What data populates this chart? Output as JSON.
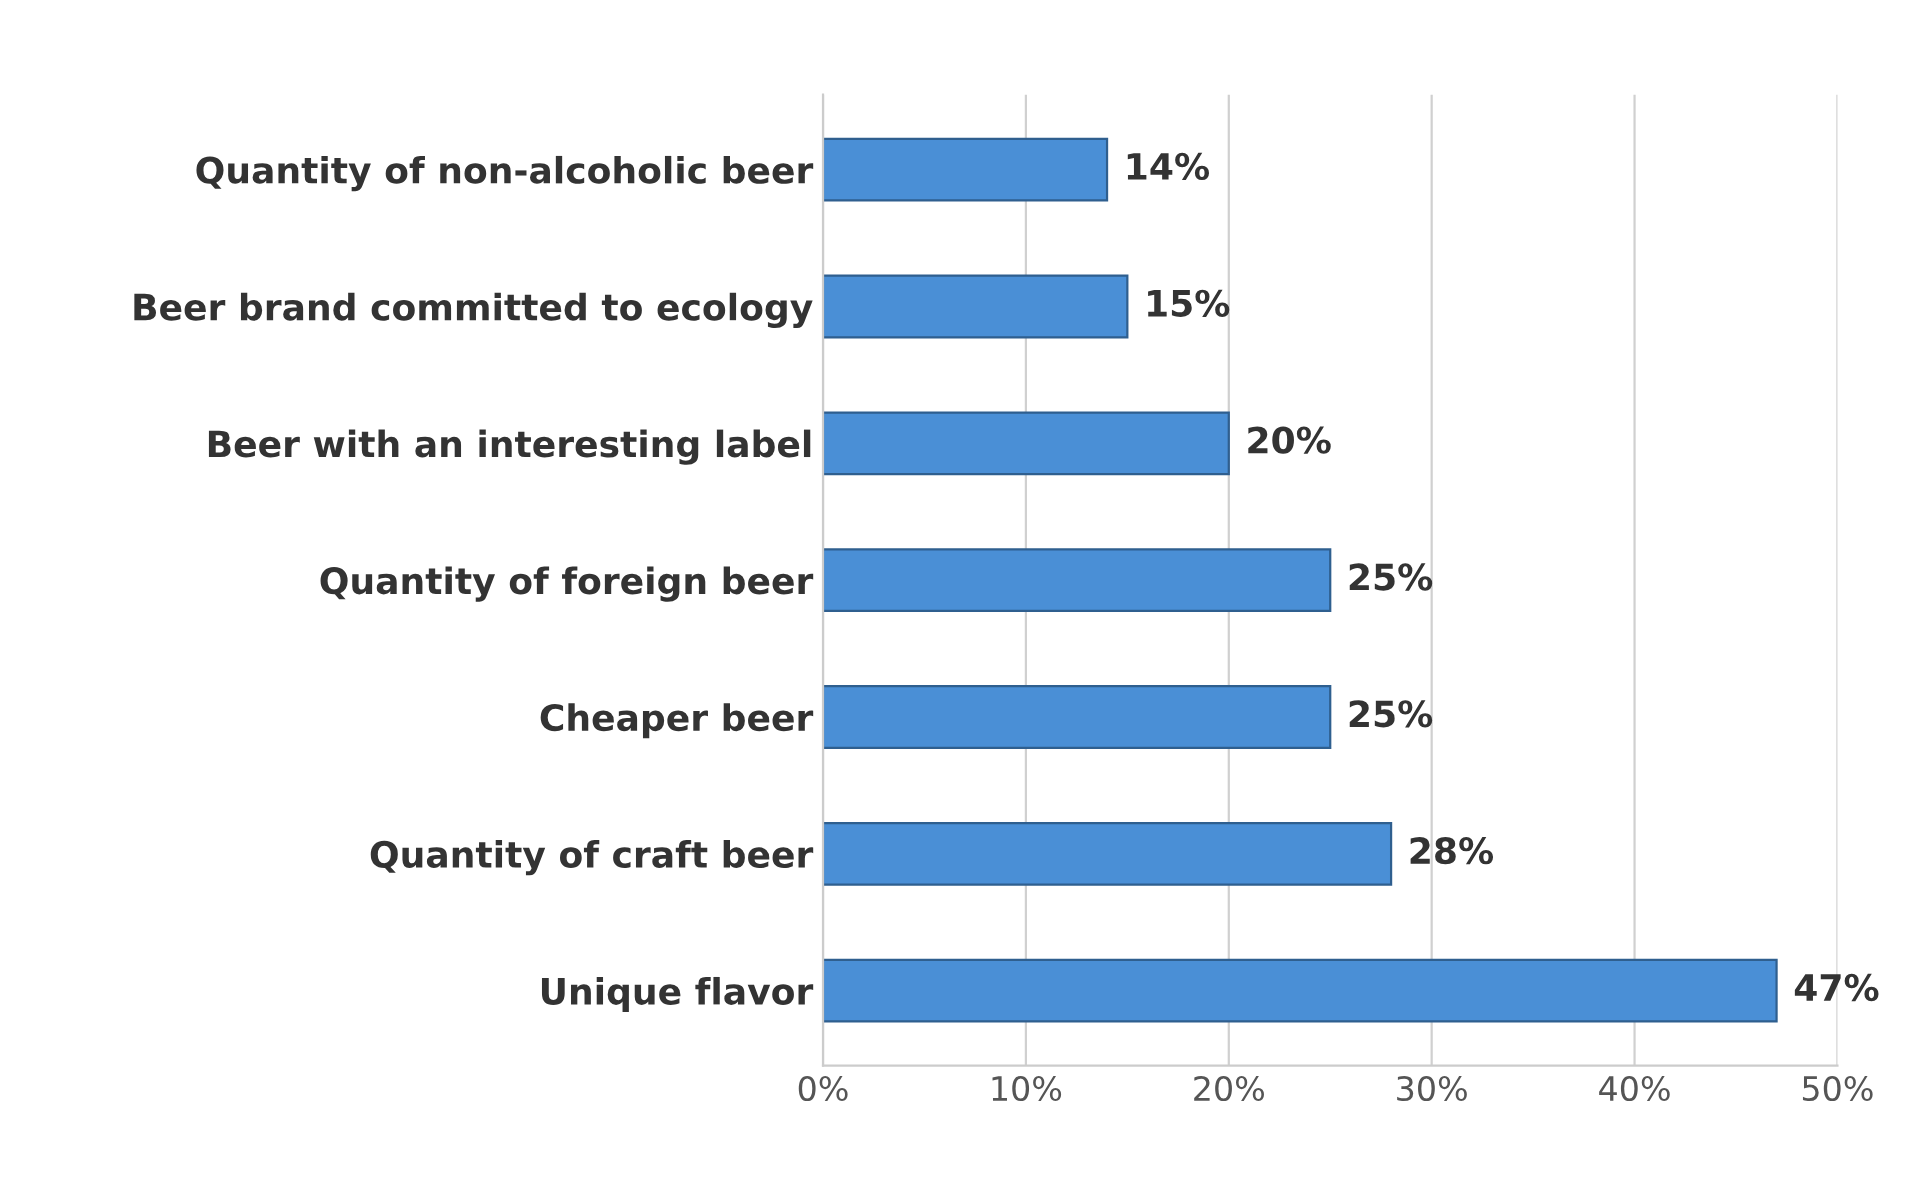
{
  "chart_data": {
    "type": "bar",
    "orientation": "horizontal",
    "categories": [
      "Quantity of non-alcoholic beer",
      "Beer brand committed to ecology",
      "Beer with an interesting label",
      "Quantity of foreign beer",
      "Cheaper beer",
      "Quantity of craft beer",
      "Unique flavor"
    ],
    "values": [
      14,
      15,
      20,
      25,
      25,
      28,
      47
    ],
    "value_labels": [
      "14%",
      "15%",
      "20%",
      "25%",
      "25%",
      "28%",
      "47%"
    ],
    "color": "#4a8fd6",
    "xlim": [
      0,
      50
    ],
    "xticks": [
      {
        "value": 0,
        "label": "0%"
      },
      {
        "value": 10,
        "label": "10%"
      },
      {
        "value": 20,
        "label": "20%"
      },
      {
        "value": 30,
        "label": "30%"
      },
      {
        "value": 40,
        "label": "40%"
      },
      {
        "value": 50,
        "label": "50%"
      }
    ],
    "grid": "x",
    "legend": false
  }
}
